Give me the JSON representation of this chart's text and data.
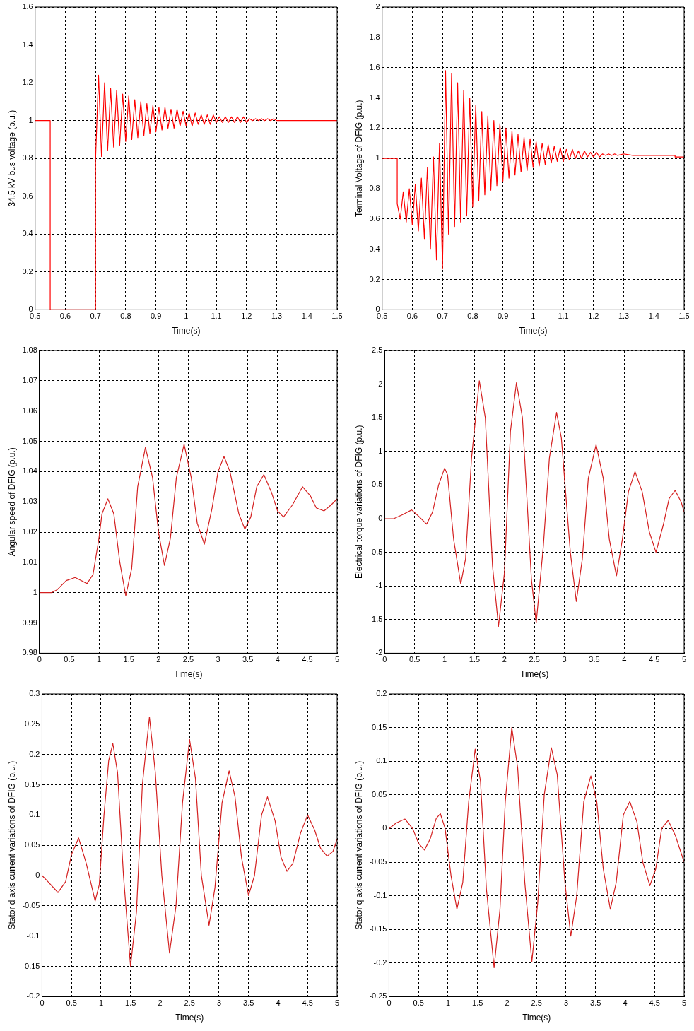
{
  "chart_data": [
    {
      "type": "line",
      "xlabel": "Time(s)",
      "ylabel": "34.5 kV bus voltage (p.u.)",
      "color": "#ff0000",
      "grid": true,
      "xlim": [
        0.5,
        1.5
      ],
      "ylim": [
        0,
        1.6
      ],
      "xticks": [
        0.5,
        0.6,
        0.7,
        0.8,
        0.9,
        1,
        1.1,
        1.2,
        1.3,
        1.4,
        1.5
      ],
      "yticks": [
        0,
        0.2,
        0.4,
        0.6,
        0.8,
        1,
        1.2,
        1.4,
        1.6
      ],
      "x": [
        0.5,
        0.55,
        0.55,
        0.7,
        0.7,
        0.71,
        0.72,
        0.73,
        0.74,
        0.75,
        0.76,
        0.77,
        0.78,
        0.79,
        0.8,
        0.81,
        0.82,
        0.83,
        0.84,
        0.85,
        0.86,
        0.87,
        0.88,
        0.89,
        0.9,
        0.91,
        0.92,
        0.93,
        0.94,
        0.95,
        0.96,
        0.97,
        0.98,
        0.99,
        1.0,
        1.01,
        1.02,
        1.03,
        1.04,
        1.05,
        1.06,
        1.07,
        1.08,
        1.09,
        1.1,
        1.11,
        1.12,
        1.13,
        1.14,
        1.15,
        1.16,
        1.17,
        1.18,
        1.19,
        1.2,
        1.21,
        1.22,
        1.23,
        1.24,
        1.25,
        1.26,
        1.27,
        1.28,
        1.29,
        1.3,
        1.5
      ],
      "values": [
        1,
        1,
        0,
        0,
        0.79,
        1.24,
        0.81,
        1.2,
        0.84,
        1.17,
        0.86,
        1.16,
        0.87,
        1.14,
        0.89,
        1.13,
        0.9,
        1.11,
        0.91,
        1.1,
        0.92,
        1.09,
        0.93,
        1.08,
        0.94,
        1.07,
        0.95,
        1.07,
        0.96,
        1.06,
        0.96,
        1.06,
        0.97,
        1.05,
        0.97,
        1.04,
        0.97,
        1.04,
        0.98,
        1.03,
        0.98,
        1.03,
        0.98,
        1.03,
        0.99,
        1.02,
        0.99,
        1.02,
        0.99,
        1.02,
        0.99,
        1.02,
        0.99,
        1.02,
        0.99,
        1.01,
        1.0,
        1.01,
        1.0,
        1.01,
        1.0,
        1.01,
        1.0,
        1.01,
        1.0,
        1.0
      ]
    },
    {
      "type": "line",
      "xlabel": "Time(s)",
      "ylabel": "Terminal Voltage of DFIG (p.u.)",
      "color": "#ff0000",
      "grid": true,
      "xlim": [
        0.5,
        1.5
      ],
      "ylim": [
        0,
        2
      ],
      "xticks": [
        0.5,
        0.6,
        0.7,
        0.8,
        0.9,
        1,
        1.1,
        1.2,
        1.3,
        1.4,
        1.5
      ],
      "yticks": [
        0,
        0.2,
        0.4,
        0.6,
        0.8,
        1,
        1.2,
        1.4,
        1.6,
        1.8,
        2
      ],
      "x": [
        0.5,
        0.55,
        0.55,
        0.56,
        0.57,
        0.58,
        0.59,
        0.6,
        0.61,
        0.62,
        0.63,
        0.64,
        0.65,
        0.66,
        0.67,
        0.68,
        0.69,
        0.7,
        0.71,
        0.72,
        0.73,
        0.74,
        0.75,
        0.76,
        0.77,
        0.78,
        0.79,
        0.8,
        0.81,
        0.82,
        0.83,
        0.84,
        0.85,
        0.86,
        0.87,
        0.88,
        0.89,
        0.9,
        0.91,
        0.92,
        0.93,
        0.94,
        0.95,
        0.96,
        0.97,
        0.98,
        0.99,
        1.0,
        1.01,
        1.02,
        1.03,
        1.04,
        1.05,
        1.06,
        1.07,
        1.08,
        1.09,
        1.1,
        1.11,
        1.12,
        1.13,
        1.14,
        1.15,
        1.16,
        1.17,
        1.18,
        1.19,
        1.2,
        1.21,
        1.22,
        1.23,
        1.24,
        1.25,
        1.26,
        1.27,
        1.28,
        1.3,
        1.33,
        1.47,
        1.47,
        1.5
      ],
      "values": [
        1,
        1,
        0.7,
        0.6,
        0.78,
        0.58,
        0.8,
        0.56,
        0.83,
        0.52,
        0.87,
        0.47,
        0.94,
        0.4,
        1.01,
        0.33,
        1.1,
        0.27,
        1.58,
        0.5,
        1.56,
        0.55,
        1.5,
        0.58,
        1.45,
        0.62,
        1.4,
        0.68,
        1.35,
        0.72,
        1.31,
        0.76,
        1.28,
        0.79,
        1.25,
        0.82,
        1.23,
        0.85,
        1.2,
        0.87,
        1.18,
        0.89,
        1.16,
        0.91,
        1.14,
        0.92,
        1.13,
        0.94,
        1.11,
        0.95,
        1.1,
        0.96,
        1.09,
        0.97,
        1.08,
        0.98,
        1.07,
        0.98,
        1.06,
        0.99,
        1.06,
        1.0,
        1.05,
        1.0,
        1.05,
        1.01,
        1.04,
        1.01,
        1.04,
        1.01,
        1.03,
        1.02,
        1.03,
        1.02,
        1.03,
        1.02,
        1.03,
        1.02,
        1.02,
        1.01,
        1.01
      ]
    },
    {
      "type": "line",
      "xlabel": "Time(s)",
      "ylabel": "Angular speed of DFIG (p.u.)",
      "color": "#d42020",
      "grid": true,
      "xlim": [
        0,
        5
      ],
      "ylim": [
        0.98,
        1.08
      ],
      "xticks": [
        0,
        0.5,
        1,
        1.5,
        2,
        2.5,
        3,
        3.5,
        4,
        4.5,
        5
      ],
      "yticks": [
        0.98,
        0.99,
        1,
        1.01,
        1.02,
        1.03,
        1.04,
        1.05,
        1.06,
        1.07,
        1.08
      ],
      "x": [
        0,
        0.1,
        0.2,
        0.3,
        0.45,
        0.6,
        0.7,
        0.8,
        0.9,
        1.0,
        1.05,
        1.15,
        1.25,
        1.35,
        1.45,
        1.55,
        1.65,
        1.78,
        1.9,
        2.0,
        2.1,
        2.2,
        2.3,
        2.43,
        2.55,
        2.65,
        2.77,
        2.9,
        3.0,
        3.1,
        3.2,
        3.35,
        3.45,
        3.55,
        3.65,
        3.77,
        3.9,
        4.0,
        4.1,
        4.25,
        4.42,
        4.55,
        4.65,
        4.78,
        4.9,
        5.0
      ],
      "values": [
        1.0,
        1.0,
        1.0,
        1.001,
        1.004,
        1.005,
        1.004,
        1.003,
        1.006,
        1.018,
        1.026,
        1.031,
        1.026,
        1.01,
        0.999,
        1.008,
        1.035,
        1.048,
        1.038,
        1.02,
        1.009,
        1.018,
        1.038,
        1.049,
        1.038,
        1.023,
        1.016,
        1.028,
        1.04,
        1.045,
        1.04,
        1.026,
        1.021,
        1.025,
        1.035,
        1.039,
        1.033,
        1.027,
        1.025,
        1.029,
        1.035,
        1.032,
        1.028,
        1.027,
        1.029,
        1.031
      ]
    },
    {
      "type": "line",
      "xlabel": "Time(s)",
      "ylabel": "Electrical torque variations of DFIG (p.u.)",
      "color": "#d42020",
      "grid": true,
      "xlim": [
        0,
        5
      ],
      "ylim": [
        -2,
        2.5
      ],
      "xticks": [
        0,
        0.5,
        1,
        1.5,
        2,
        2.5,
        3,
        3.5,
        4,
        4.5,
        5
      ],
      "yticks": [
        -2,
        -1.5,
        -1,
        -0.5,
        0,
        0.5,
        1,
        1.5,
        2,
        2.5
      ],
      "x": [
        0,
        0.15,
        0.3,
        0.45,
        0.55,
        0.7,
        0.8,
        0.9,
        1.0,
        1.05,
        1.15,
        1.27,
        1.35,
        1.45,
        1.58,
        1.68,
        1.8,
        1.9,
        2.0,
        2.1,
        2.2,
        2.3,
        2.45,
        2.53,
        2.65,
        2.75,
        2.87,
        2.95,
        3.1,
        3.2,
        3.3,
        3.4,
        3.53,
        3.65,
        3.75,
        3.87,
        3.97,
        4.07,
        4.18,
        4.3,
        4.42,
        4.53,
        4.65,
        4.75,
        4.85,
        4.95,
        5.0
      ],
      "values": [
        0,
        0,
        0.06,
        0.13,
        0.05,
        -0.08,
        0.1,
        0.5,
        0.75,
        0.65,
        -0.3,
        -0.97,
        -0.6,
        0.9,
        2.05,
        1.5,
        -0.7,
        -1.6,
        -0.8,
        1.3,
        2.02,
        1.5,
        -0.9,
        -1.55,
        -0.4,
        0.9,
        1.58,
        1.2,
        -0.5,
        -1.23,
        -0.6,
        0.6,
        1.1,
        0.6,
        -0.3,
        -0.85,
        -0.3,
        0.4,
        0.7,
        0.4,
        -0.2,
        -0.5,
        -0.1,
        0.3,
        0.42,
        0.25,
        0.1
      ]
    },
    {
      "type": "line",
      "xlabel": "Time(s)",
      "ylabel": "Stator d axis current variations of DFIG (p.u.)",
      "color": "#d42020",
      "grid": true,
      "xlim": [
        0,
        5
      ],
      "ylim": [
        -0.2,
        0.3
      ],
      "xticks": [
        0,
        0.5,
        1,
        1.5,
        2,
        2.5,
        3,
        3.5,
        4,
        4.5,
        5
      ],
      "yticks": [
        -0.2,
        -0.15,
        -0.1,
        -0.05,
        0,
        0.05,
        0.1,
        0.15,
        0.2,
        0.25,
        0.3
      ],
      "x": [
        0,
        0.1,
        0.27,
        0.4,
        0.5,
        0.62,
        0.75,
        0.9,
        0.97,
        1.05,
        1.13,
        1.2,
        1.28,
        1.38,
        1.5,
        1.6,
        1.7,
        1.82,
        1.92,
        2.03,
        2.16,
        2.27,
        2.38,
        2.5,
        2.6,
        2.7,
        2.83,
        2.93,
        3.05,
        3.17,
        3.27,
        3.38,
        3.5,
        3.6,
        3.72,
        3.82,
        3.95,
        4.05,
        4.15,
        4.25,
        4.38,
        4.5,
        4.62,
        4.72,
        4.83,
        4.93,
        5.0
      ],
      "values": [
        0,
        -0.01,
        -0.028,
        -0.01,
        0.035,
        0.062,
        0.02,
        -0.042,
        -0.015,
        0.1,
        0.19,
        0.218,
        0.17,
        0.0,
        -0.15,
        -0.06,
        0.15,
        0.262,
        0.17,
        0.0,
        -0.128,
        -0.05,
        0.12,
        0.225,
        0.16,
        0.0,
        -0.082,
        -0.02,
        0.12,
        0.173,
        0.13,
        0.03,
        -0.033,
        0.0,
        0.1,
        0.13,
        0.09,
        0.03,
        0.007,
        0.02,
        0.07,
        0.1,
        0.075,
        0.045,
        0.032,
        0.04,
        0.06
      ]
    },
    {
      "type": "line",
      "xlabel": "Time(s)",
      "ylabel": "Stator q axis current variations of DFIG (p.u.)",
      "color": "#d42020",
      "grid": true,
      "xlim": [
        0,
        5
      ],
      "ylim": [
        -0.25,
        0.2
      ],
      "xticks": [
        0,
        0.5,
        1,
        1.5,
        2,
        2.5,
        3,
        3.5,
        4,
        4.5,
        5
      ],
      "yticks": [
        -0.25,
        -0.2,
        -0.15,
        -0.1,
        -0.05,
        0,
        0.05,
        0.1,
        0.15,
        0.2
      ],
      "x": [
        0,
        0.12,
        0.27,
        0.4,
        0.5,
        0.6,
        0.7,
        0.8,
        0.87,
        0.95,
        1.05,
        1.15,
        1.25,
        1.35,
        1.46,
        1.55,
        1.65,
        1.78,
        1.88,
        1.97,
        2.08,
        2.18,
        2.3,
        2.42,
        2.52,
        2.63,
        2.75,
        2.85,
        2.98,
        3.08,
        3.18,
        3.3,
        3.42,
        3.52,
        3.63,
        3.75,
        3.85,
        3.97,
        4.08,
        4.2,
        4.3,
        4.42,
        4.52,
        4.62,
        4.73,
        4.85,
        5.0
      ],
      "values": [
        0,
        0.008,
        0.014,
        0.0,
        -0.022,
        -0.032,
        -0.015,
        0.015,
        0.022,
        0.0,
        -0.07,
        -0.12,
        -0.08,
        0.04,
        0.118,
        0.07,
        -0.09,
        -0.207,
        -0.12,
        0.04,
        0.15,
        0.09,
        -0.08,
        -0.198,
        -0.11,
        0.05,
        0.12,
        0.08,
        -0.08,
        -0.16,
        -0.1,
        0.04,
        0.078,
        0.04,
        -0.06,
        -0.12,
        -0.08,
        0.02,
        0.04,
        0.01,
        -0.05,
        -0.085,
        -0.06,
        0.0,
        0.012,
        -0.01,
        -0.05
      ]
    }
  ]
}
